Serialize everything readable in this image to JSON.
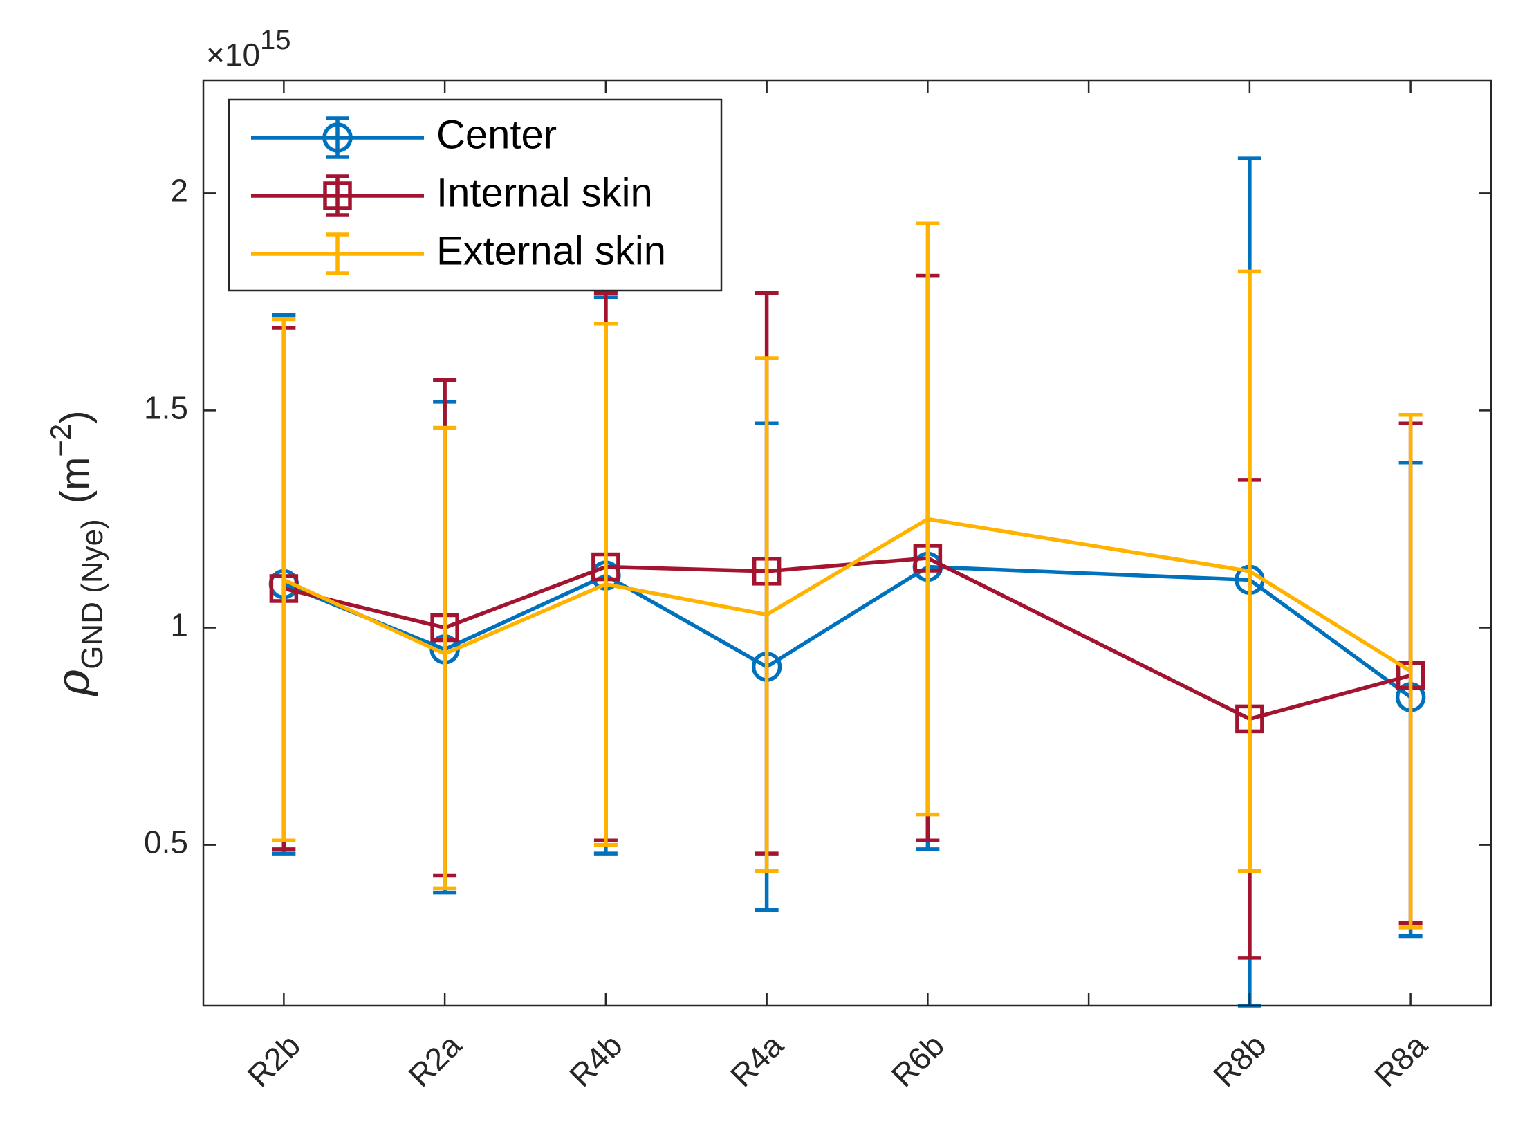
{
  "chart_data": {
    "type": "line",
    "title": "",
    "xlabel": "",
    "ylabel_main": "ρ",
    "ylabel_sub": "GND (Nye)",
    "ylabel_unit_open": "(m",
    "ylabel_unit_exp": "−2",
    "ylabel_unit_close": ")",
    "exponent_base": "×10",
    "exponent_power": "15",
    "categories": [
      {
        "label": "R2b",
        "x": 1
      },
      {
        "label": "R2a",
        "x": 2
      },
      {
        "label": "R4b",
        "x": 3
      },
      {
        "label": "R4a",
        "x": 4
      },
      {
        "label": "R6b",
        "x": 5
      },
      {
        "label": "R8b",
        "x": 7
      },
      {
        "label": "R8a",
        "x": 8
      }
    ],
    "xlim": [
      0.5,
      8.5
    ],
    "xticks": [
      1,
      2,
      3,
      4,
      5,
      6,
      7,
      8
    ],
    "ylim": [
      0.13,
      2.26
    ],
    "yticks": [
      0.5,
      1,
      1.5,
      2
    ],
    "ytick_labels": [
      "0.5",
      "1",
      "1.5",
      "2"
    ],
    "grid": false,
    "legend_position": "top-left",
    "series": [
      {
        "name": "Center",
        "color": "#0072BD",
        "marker": "circle",
        "values": [
          1.1,
          0.95,
          1.12,
          0.91,
          1.14,
          1.11,
          0.84
        ],
        "lower": [
          0.48,
          0.39,
          0.48,
          0.35,
          0.49,
          0.13,
          0.29
        ],
        "upper": [
          1.72,
          1.52,
          1.76,
          1.47,
          1.81,
          2.08,
          1.38
        ]
      },
      {
        "name": "Internal skin",
        "color": "#A2142F",
        "marker": "square",
        "values": [
          1.09,
          1.0,
          1.14,
          1.13,
          1.16,
          0.79,
          0.89
        ],
        "lower": [
          0.49,
          0.43,
          0.51,
          0.48,
          0.51,
          0.24,
          0.32
        ],
        "upper": [
          1.69,
          1.57,
          1.77,
          1.77,
          1.81,
          1.34,
          1.47
        ]
      },
      {
        "name": "External skin",
        "color": "#FFB300",
        "marker": "none",
        "values": [
          1.11,
          0.94,
          1.1,
          1.03,
          1.25,
          1.13,
          0.9
        ],
        "lower": [
          0.51,
          0.4,
          0.5,
          0.44,
          0.57,
          0.44,
          0.31
        ],
        "upper": [
          1.71,
          1.46,
          1.7,
          1.62,
          1.93,
          1.82,
          1.49
        ]
      }
    ]
  }
}
